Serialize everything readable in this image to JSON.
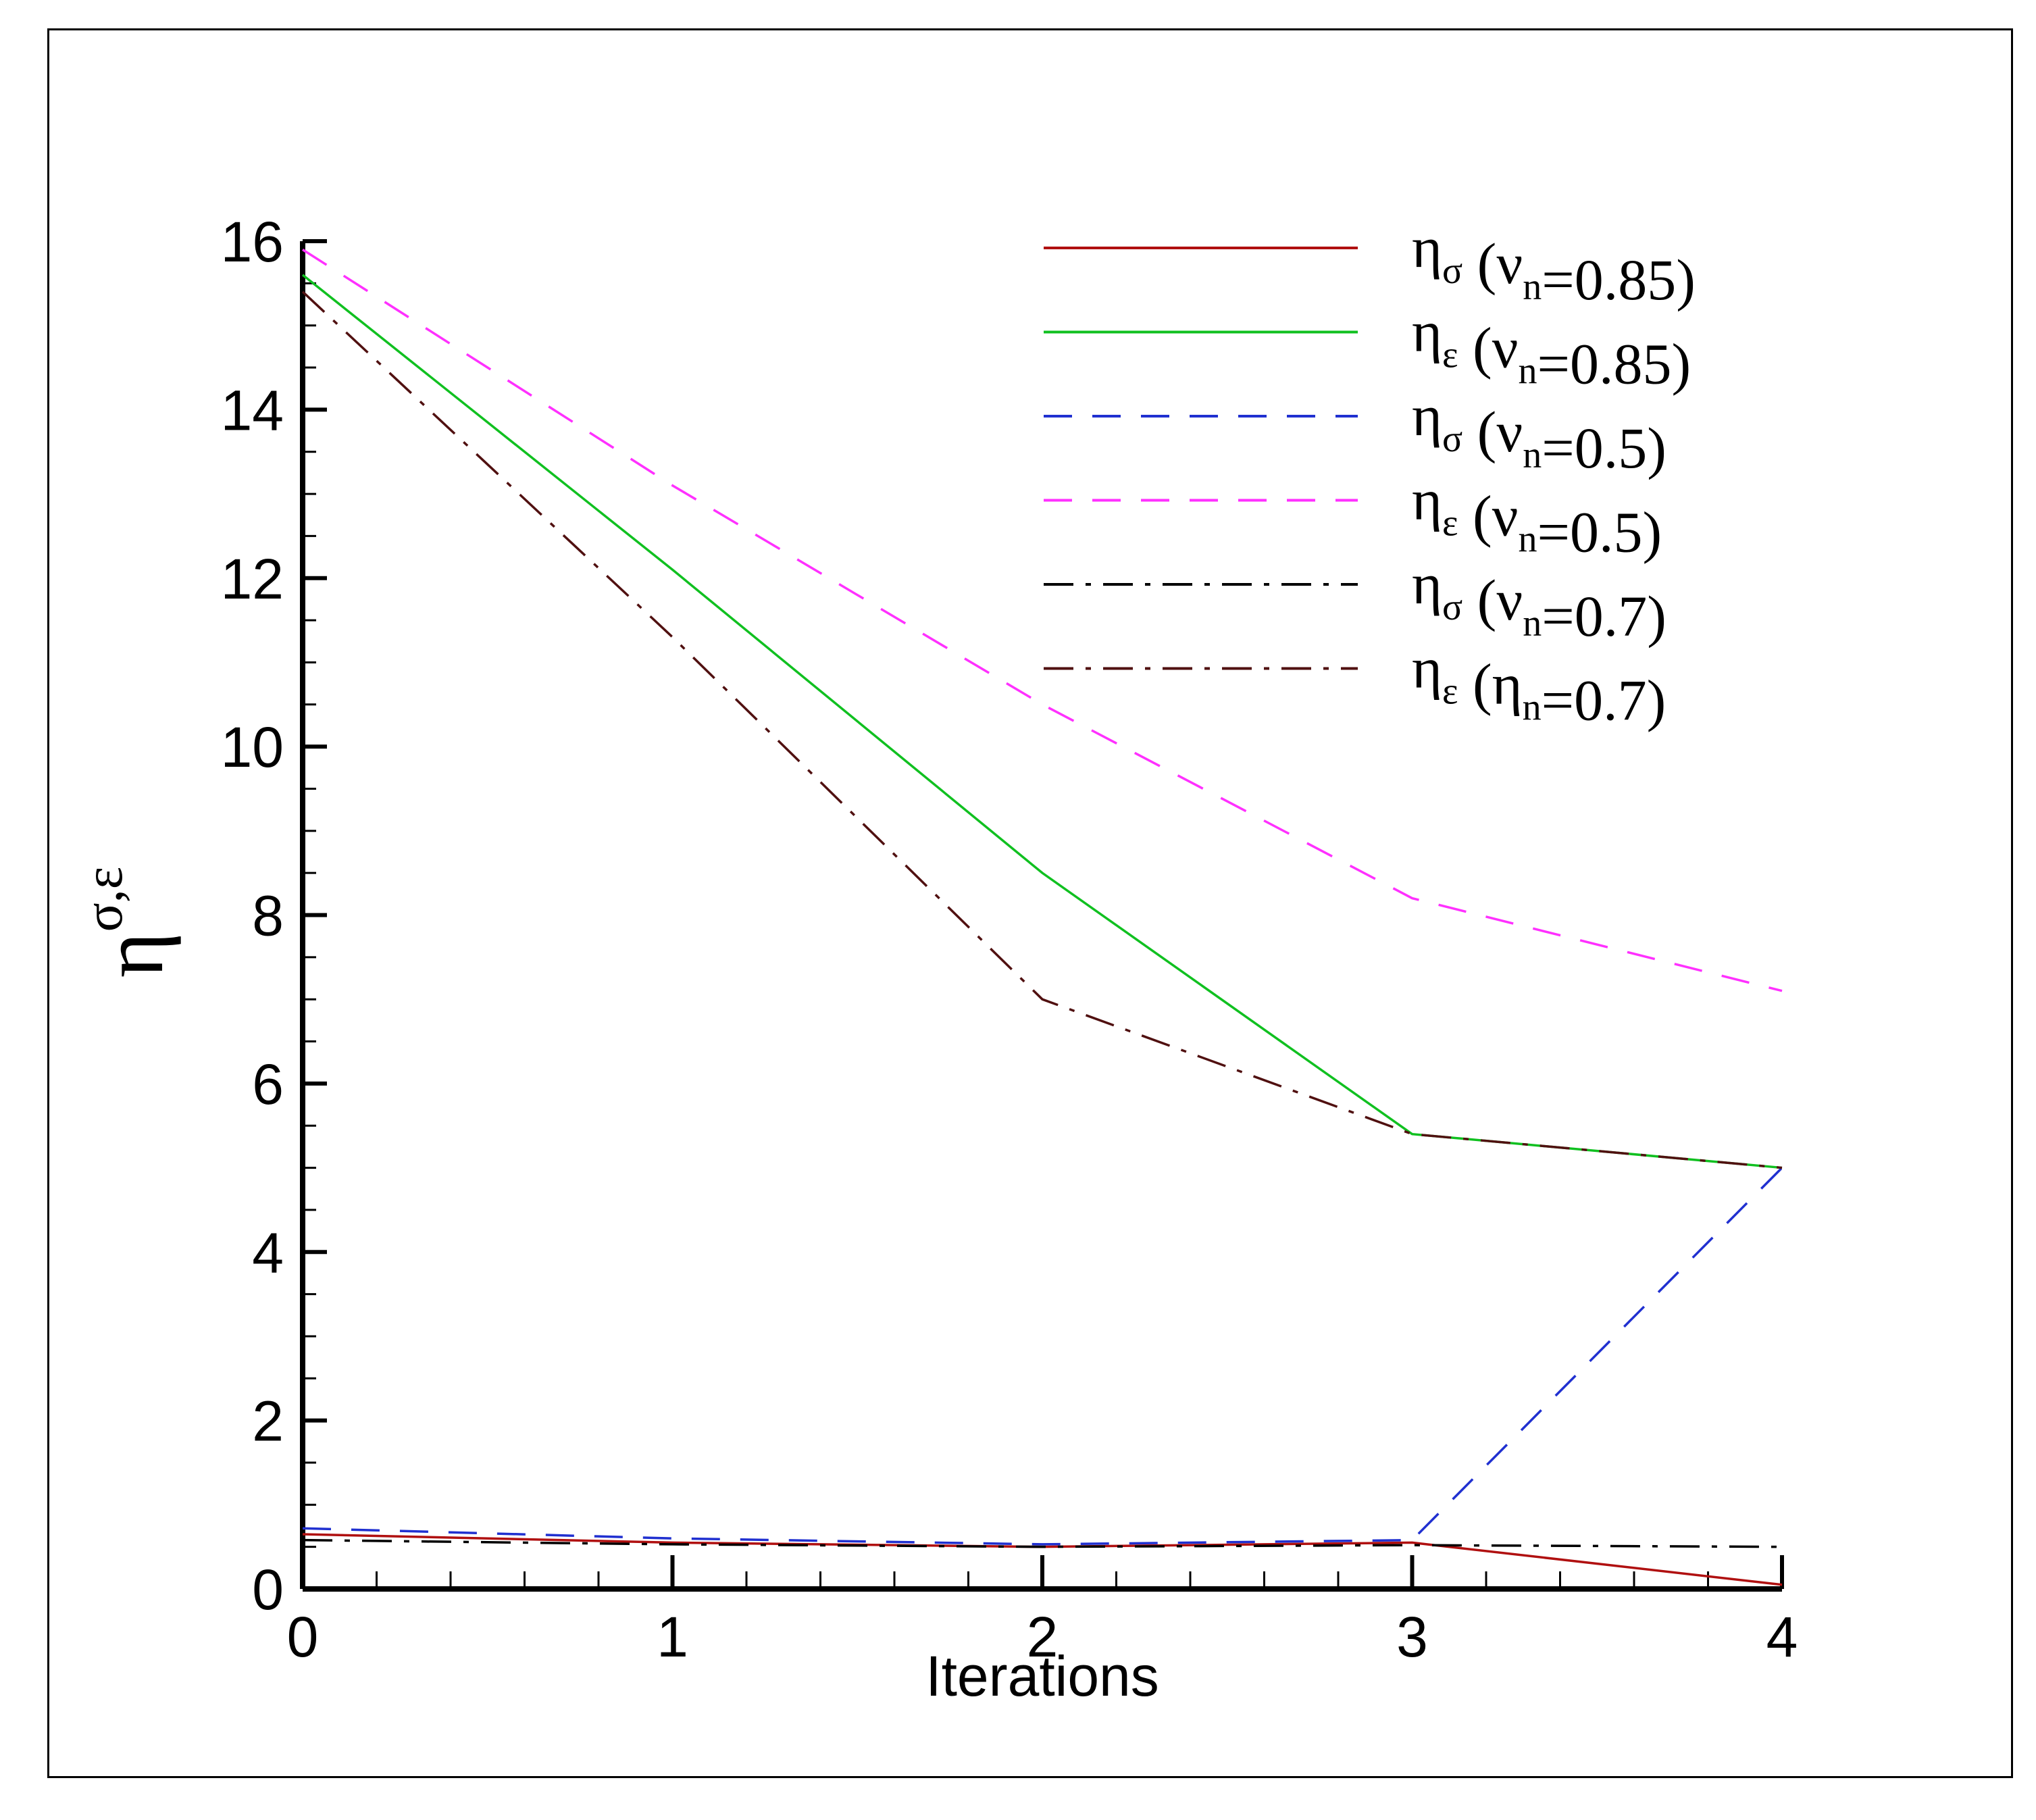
{
  "chart_data": {
    "type": "line",
    "title": "",
    "xlabel": "Iterations",
    "ylabel": {
      "symbol": "η",
      "subscript": "σ,ε"
    },
    "xlim": [
      0,
      4
    ],
    "ylim": [
      0,
      16
    ],
    "xticks": [
      0,
      1,
      2,
      3,
      4
    ],
    "yticks": [
      0,
      2,
      4,
      6,
      8,
      10,
      12,
      14,
      16
    ],
    "x": [
      0,
      1,
      2,
      3,
      4
    ],
    "grid": false,
    "legend_position": "top-right",
    "series": [
      {
        "symbol": "η",
        "sub": "σ",
        "open": " (",
        "mid": "ν",
        "midsub": "n",
        "tail": "=0.85)",
        "color": "#b01010",
        "style": "solid",
        "values": [
          0.65,
          0.55,
          0.5,
          0.55,
          0.05
        ]
      },
      {
        "symbol": "η",
        "sub": "ε",
        "open": " (",
        "mid": "ν",
        "midsub": "n",
        "tail": "=0.85)",
        "color": "#10c020",
        "style": "solid",
        "values": [
          15.6,
          12.1,
          8.5,
          5.4,
          5.0
        ]
      },
      {
        "symbol": "η",
        "sub": "σ",
        "open": " (",
        "mid": "ν",
        "midsub": "n",
        "tail": "=0.5)",
        "color": "#2030d0",
        "style": "dash",
        "values": [
          0.72,
          0.6,
          0.53,
          0.58,
          5.0
        ]
      },
      {
        "symbol": "η",
        "sub": "ε",
        "open": " (",
        "mid": "ν",
        "midsub": "n",
        "tail": "=0.5)",
        "color": "#ff30ff",
        "style": "dash",
        "values": [
          15.9,
          13.1,
          10.5,
          8.2,
          7.1
        ]
      },
      {
        "symbol": "η",
        "sub": "σ",
        "open": " (",
        "mid": "ν",
        "midsub": "n",
        "tail": "=0.7)",
        "color": "#000000",
        "style": "dashdot",
        "values": [
          0.58,
          0.53,
          0.5,
          0.52,
          0.5
        ]
      },
      {
        "symbol": "η",
        "sub": "ε",
        "open": " (",
        "mid": "η",
        "midsub": "n",
        "tail": "=0.7)",
        "color": "#501010",
        "style": "dashdot",
        "values": [
          15.4,
          11.3,
          7.0,
          5.4,
          5.0
        ]
      }
    ]
  }
}
